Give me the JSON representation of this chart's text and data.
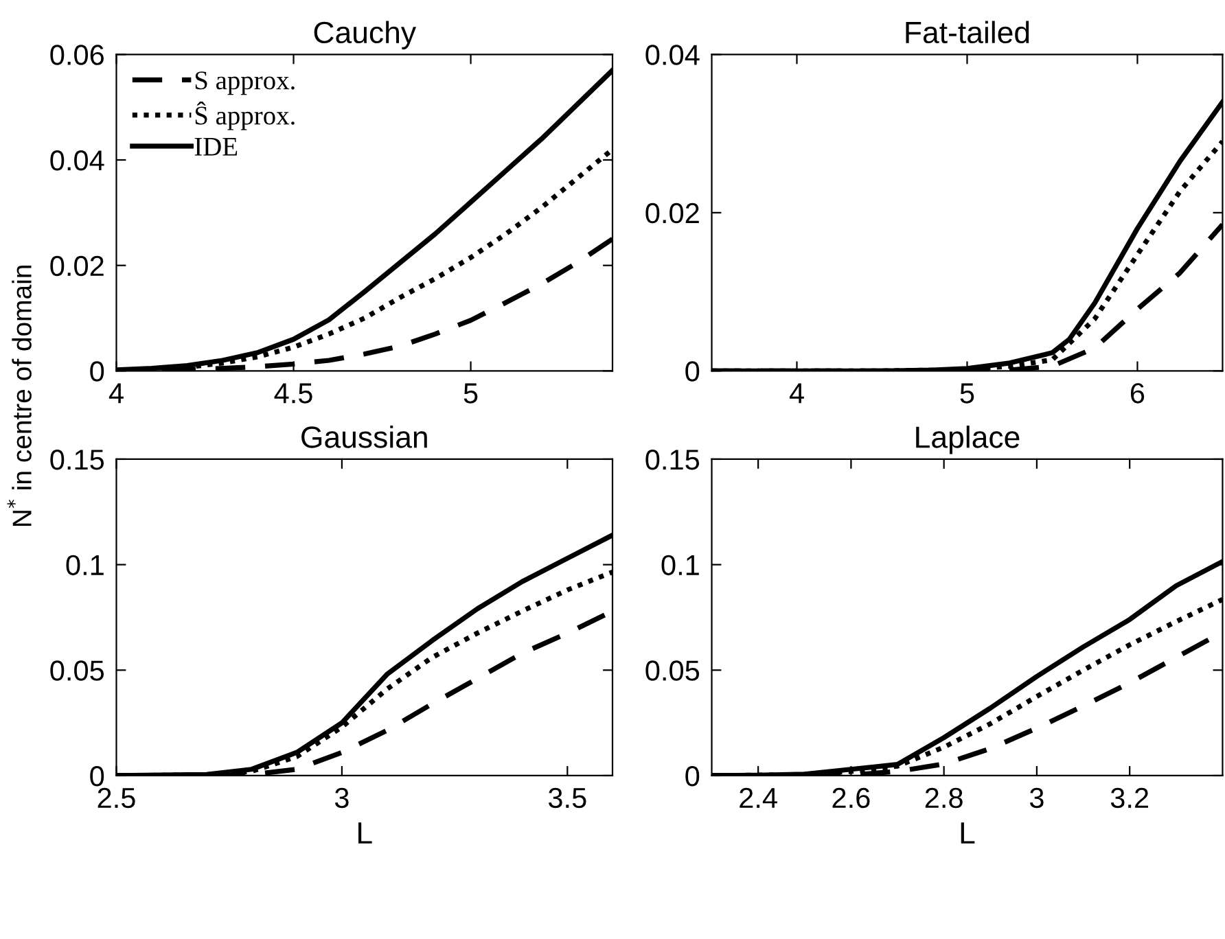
{
  "chart_data": [
    {
      "type": "line",
      "title": "Cauchy",
      "xlim": [
        4,
        5.4
      ],
      "xticks": [
        4,
        4.5,
        5
      ],
      "ylim": [
        0,
        0.06
      ],
      "yticks": [
        0,
        0.02,
        0.04,
        0.06
      ],
      "grid": false,
      "legend": "top left",
      "marker": "none",
      "series": [
        {
          "name": "S approx.",
          "color": "#000000",
          "line_style": "dashed",
          "x": [
            4,
            4.2,
            4.4,
            4.5,
            4.6,
            4.7,
            4.8,
            4.9,
            5.0,
            5.1,
            5.2,
            5.3,
            5.4
          ],
          "values": [
            0,
            0.0002,
            0.0008,
            0.0013,
            0.002,
            0.0032,
            0.0047,
            0.007,
            0.0096,
            0.013,
            0.0165,
            0.0205,
            0.025
          ]
        },
        {
          "name": "Ŝ approx.",
          "color": "#000000",
          "line_style": "dotted",
          "x": [
            4,
            4.1,
            4.2,
            4.3,
            4.4,
            4.5,
            4.6,
            4.7,
            4.8,
            4.9,
            5.0,
            5.1,
            5.2,
            5.3,
            5.4
          ],
          "values": [
            0.0001,
            0.0003,
            0.0007,
            0.0015,
            0.0027,
            0.0045,
            0.007,
            0.01,
            0.0139,
            0.0175,
            0.0215,
            0.026,
            0.031,
            0.0365,
            0.042
          ]
        },
        {
          "name": "IDE",
          "color": "#000000",
          "line_style": "solid",
          "x": [
            4,
            4.1,
            4.2,
            4.3,
            4.4,
            4.5,
            4.6,
            4.7,
            4.8,
            4.9,
            5.0,
            5.1,
            5.2,
            5.3,
            5.4
          ],
          "values": [
            0.0002,
            0.0005,
            0.001,
            0.002,
            0.0035,
            0.006,
            0.0097,
            0.015,
            0.0205,
            0.026,
            0.032,
            0.038,
            0.044,
            0.0505,
            0.057
          ]
        }
      ]
    },
    {
      "type": "line",
      "title": "Fat-tailed",
      "xlim": [
        3.5,
        6.5
      ],
      "xticks": [
        4,
        5,
        6
      ],
      "ylim": [
        0,
        0.04
      ],
      "yticks": [
        0,
        0.02,
        0.04
      ],
      "grid": false,
      "marker": "none",
      "series": [
        {
          "color": "#000000",
          "line_style": "dashed",
          "x": [
            3.5,
            4,
            4.5,
            5.0,
            5.25,
            5.5,
            5.75,
            6.0,
            6.25,
            6.5
          ],
          "values": [
            0,
            0,
            0,
            0,
            0.0001,
            0.0006,
            0.0029,
            0.0078,
            0.0124,
            0.0185
          ]
        },
        {
          "color": "#000000",
          "line_style": "dotted",
          "x": [
            3.5,
            4,
            4.5,
            4.8,
            5.0,
            5.25,
            5.5,
            5.75,
            6.0,
            6.25,
            6.5
          ],
          "values": [
            0,
            0,
            0,
            0.0001,
            0.0002,
            0.0006,
            0.0014,
            0.0066,
            0.0147,
            0.0227,
            0.029
          ]
        },
        {
          "color": "#000000",
          "line_style": "solid",
          "x": [
            3.5,
            4,
            4.5,
            4.8,
            5.0,
            5.25,
            5.5,
            5.6,
            5.75,
            6.0,
            6.25,
            6.5
          ],
          "values": [
            0,
            0,
            0,
            0.0001,
            0.0003,
            0.001,
            0.0023,
            0.004,
            0.0086,
            0.018,
            0.0265,
            0.034
          ]
        }
      ]
    },
    {
      "type": "line",
      "title": "Gaussian",
      "xlabel": "L",
      "ylabel": "N$^{*}$ in centre of domain",
      "xlim": [
        2.5,
        3.6
      ],
      "xticks": [
        2.5,
        3,
        3.5
      ],
      "ylim": [
        0,
        0.15
      ],
      "yticks": [
        0,
        0.05,
        0.1,
        0.15
      ],
      "grid": false,
      "marker": "none",
      "series": [
        {
          "color": "#000000",
          "line_style": "dashed",
          "x": [
            2.5,
            2.7,
            2.8,
            2.9,
            3.0,
            3.1,
            3.2,
            3.3,
            3.4,
            3.5,
            3.6
          ],
          "values": [
            0,
            0,
            0.0005,
            0.003,
            0.011,
            0.0214,
            0.034,
            0.046,
            0.058,
            0.0675,
            0.078
          ]
        },
        {
          "color": "#000000",
          "line_style": "dotted",
          "x": [
            2.5,
            2.7,
            2.8,
            2.9,
            3.0,
            3.1,
            3.2,
            3.3,
            3.4,
            3.5,
            3.6
          ],
          "values": [
            0,
            0.0004,
            0.002,
            0.009,
            0.023,
            0.041,
            0.056,
            0.0675,
            0.078,
            0.088,
            0.0965
          ]
        },
        {
          "color": "#000000",
          "line_style": "solid",
          "x": [
            2.5,
            2.7,
            2.8,
            2.9,
            3.0,
            3.1,
            3.2,
            3.3,
            3.4,
            3.5,
            3.6
          ],
          "values": [
            0,
            0.0005,
            0.003,
            0.011,
            0.025,
            0.048,
            0.064,
            0.079,
            0.092,
            0.103,
            0.114
          ]
        }
      ]
    },
    {
      "type": "line",
      "title": "Laplace",
      "xlabel": "L",
      "xlim": [
        2.3,
        3.4
      ],
      "xticks": [
        2.4,
        2.6,
        2.8,
        3,
        3.2
      ],
      "ylim": [
        0,
        0.15
      ],
      "yticks": [
        0,
        0.05,
        0.1,
        0.15
      ],
      "grid": false,
      "marker": "none",
      "series": [
        {
          "color": "#000000",
          "line_style": "dashed",
          "x": [
            2.3,
            2.5,
            2.6,
            2.7,
            2.8,
            2.9,
            3.0,
            3.1,
            3.2,
            3.3,
            3.4
          ],
          "values": [
            0,
            0,
            0.0003,
            0.002,
            0.0055,
            0.0128,
            0.0225,
            0.033,
            0.044,
            0.056,
            0.068
          ]
        },
        {
          "color": "#000000",
          "line_style": "dotted",
          "x": [
            2.3,
            2.5,
            2.6,
            2.7,
            2.8,
            2.9,
            3.0,
            3.1,
            3.2,
            3.3,
            3.4
          ],
          "values": [
            0,
            0.0005,
            0.002,
            0.0045,
            0.0135,
            0.0246,
            0.0375,
            0.05,
            0.062,
            0.073,
            0.0835
          ]
        },
        {
          "color": "#000000",
          "line_style": "solid",
          "x": [
            2.3,
            2.4,
            2.5,
            2.6,
            2.7,
            2.8,
            2.9,
            3.0,
            3.1,
            3.2,
            3.3,
            3.4
          ],
          "values": [
            0,
            0.0002,
            0.0007,
            0.003,
            0.0053,
            0.018,
            0.032,
            0.047,
            0.061,
            0.074,
            0.09,
            0.1015
          ]
        }
      ]
    }
  ]
}
